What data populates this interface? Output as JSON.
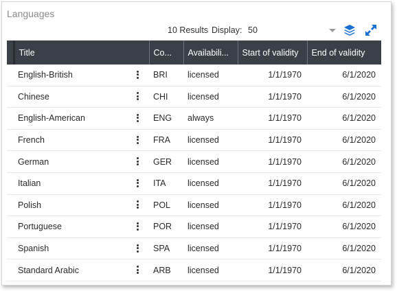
{
  "panel": {
    "title": "Languages"
  },
  "toolbar": {
    "results": "10 Results",
    "display_label": "Display:",
    "display_value": "50",
    "layers_icon": "layers-icon",
    "expand_icon": "expand-icon",
    "accent": "#1a6fd0"
  },
  "table": {
    "headers": {
      "title": "Title",
      "code": "Co...",
      "availability": "Availabili...",
      "start": "Start of validity",
      "end": "End of validity"
    },
    "rows": [
      {
        "title": "English-British",
        "code": "BRI",
        "availability": "licensed",
        "start": "1/1/1970",
        "end": "6/1/2020"
      },
      {
        "title": "Chinese",
        "code": "CHI",
        "availability": "licensed",
        "start": "1/1/1970",
        "end": "6/1/2020"
      },
      {
        "title": "English-American",
        "code": "ENG",
        "availability": "always",
        "start": "1/1/1970",
        "end": "6/1/2020"
      },
      {
        "title": "French",
        "code": "FRA",
        "availability": "licensed",
        "start": "1/1/1970",
        "end": "6/1/2020"
      },
      {
        "title": "German",
        "code": "GER",
        "availability": "licensed",
        "start": "1/1/1970",
        "end": "6/1/2020"
      },
      {
        "title": "Italian",
        "code": "ITA",
        "availability": "licensed",
        "start": "1/1/1970",
        "end": "6/1/2020"
      },
      {
        "title": "Polish",
        "code": "POL",
        "availability": "licensed",
        "start": "1/1/1970",
        "end": "6/1/2020"
      },
      {
        "title": "Portuguese",
        "code": "POR",
        "availability": "licensed",
        "start": "1/1/1970",
        "end": "6/1/2020"
      },
      {
        "title": "Spanish",
        "code": "SPA",
        "availability": "licensed",
        "start": "1/1/1970",
        "end": "6/1/2020"
      },
      {
        "title": "Standard Arabic",
        "code": "ARB",
        "availability": "licensed",
        "start": "1/1/1970",
        "end": "6/1/2020"
      }
    ]
  },
  "colors": {
    "header_bg": "#3b4048",
    "header_text": "#ffffff",
    "row_divider": "#e8e8e8"
  }
}
